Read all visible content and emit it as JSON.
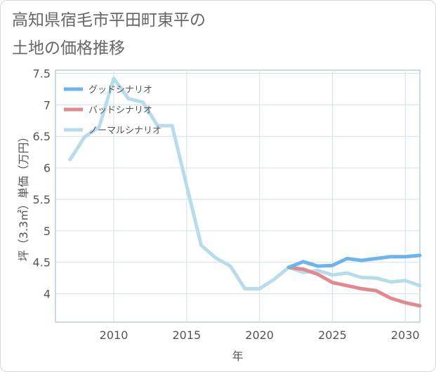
{
  "title_lines": [
    "高知県宿毛市平田町東平の",
    "土地の価格推移"
  ],
  "chart_data": {
    "type": "line",
    "xlabel": "年",
    "ylabel": "坪（3.3㎡）単価（万円）",
    "xlim": [
      2006,
      2031
    ],
    "ylim": [
      3.55,
      7.55
    ],
    "xticks": [
      2010,
      2015,
      2020,
      2025,
      2030
    ],
    "yticks": [
      4,
      4.5,
      5,
      5.5,
      6,
      6.5,
      7,
      7.5
    ],
    "grid": true,
    "legend_position": "top-left",
    "series": [
      {
        "name": "グッドシナリオ",
        "color": "#6cb4ee",
        "x": [
          2022,
          2023,
          2024,
          2025,
          2026,
          2027,
          2028,
          2029,
          2030,
          2031
        ],
        "y": [
          4.42,
          4.51,
          4.44,
          4.45,
          4.56,
          4.53,
          4.56,
          4.59,
          4.59,
          4.61
        ]
      },
      {
        "name": "バッドシナリオ",
        "color": "#e08a8f",
        "x": [
          2022,
          2023,
          2024,
          2025,
          2026,
          2027,
          2028,
          2029,
          2030,
          2031
        ],
        "y": [
          4.42,
          4.39,
          4.31,
          4.18,
          4.13,
          4.08,
          4.05,
          3.93,
          3.86,
          3.81
        ]
      },
      {
        "name": "ノーマルシナリオ",
        "color": "#b9dcea",
        "x": [
          2007,
          2008,
          2009,
          2010,
          2011,
          2012,
          2013,
          2014,
          2015,
          2016,
          2017,
          2018,
          2019,
          2020,
          2021,
          2022,
          2023,
          2024,
          2025,
          2026,
          2027,
          2028,
          2029,
          2030,
          2031
        ],
        "y": [
          6.13,
          6.49,
          6.65,
          7.42,
          7.1,
          7.04,
          6.67,
          6.67,
          5.72,
          4.77,
          4.57,
          4.44,
          4.08,
          4.08,
          4.23,
          4.42,
          4.34,
          4.37,
          4.3,
          4.33,
          4.26,
          4.25,
          4.19,
          4.21,
          4.13
        ]
      }
    ]
  }
}
